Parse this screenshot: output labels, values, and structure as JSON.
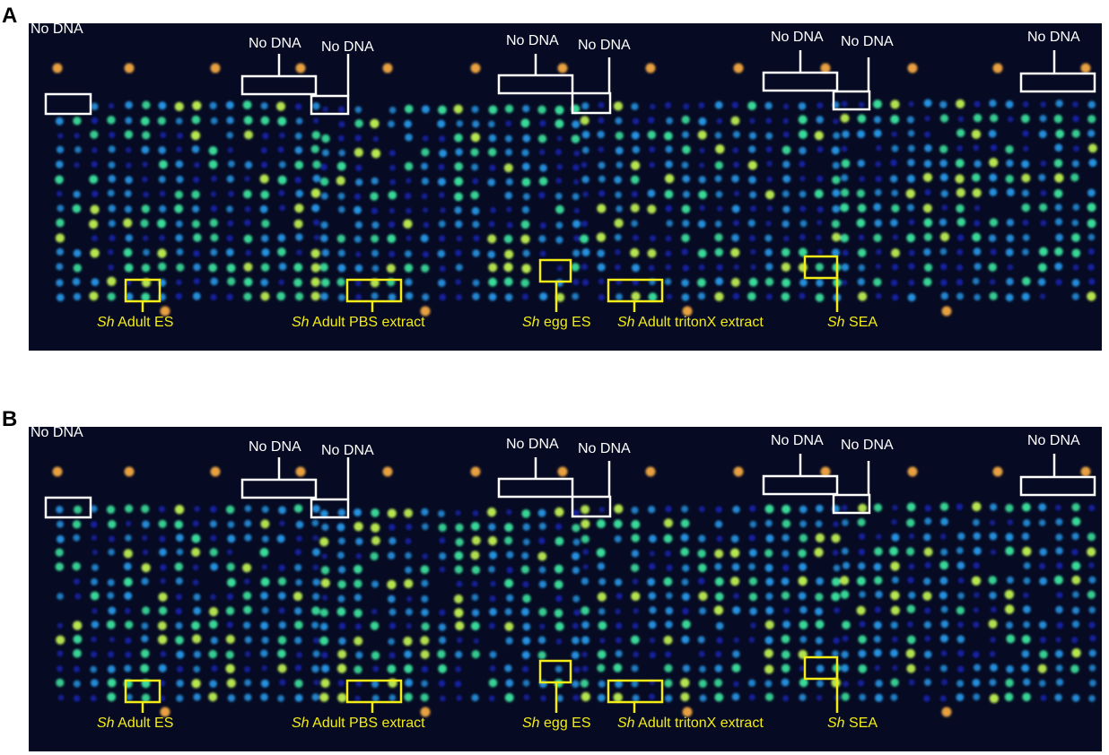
{
  "panels": [
    {
      "letter": "A",
      "no_dna_label": "No DNA",
      "antigens": {
        "adult_es": {
          "italic": "Sh",
          "text": "Adult ES"
        },
        "adult_pbs": {
          "italic": "Sh",
          "text": "Adult PBS extract"
        },
        "egg_es": {
          "italic": "Sh",
          "text": "egg ES"
        },
        "adult_triton": {
          "italic": "Sh",
          "text": "Adult tritonX extract"
        },
        "sea": {
          "italic": "Sh",
          "text": "SEA"
        }
      }
    },
    {
      "letter": "B",
      "no_dna_label": "No DNA",
      "antigens": {
        "adult_es": {
          "italic": "Sh",
          "text": "Adult ES"
        },
        "adult_pbs": {
          "italic": "Sh",
          "text": "Adult PBS extract"
        },
        "egg_es": {
          "italic": "Sh",
          "text": "egg ES"
        },
        "adult_triton": {
          "italic": "Sh",
          "text": "Adult tritonX extract"
        },
        "sea": {
          "italic": "Sh",
          "text": "SEA"
        }
      }
    }
  ],
  "colors": {
    "background": "#060a22",
    "annotation_white": "#ffffff",
    "annotation_yellow": "#f3ec16",
    "spot_low": "#1a2bd8",
    "spot_mid": "#2aa8ff",
    "spot_high": "#3de6a0",
    "spot_marker": "#e8a040"
  }
}
